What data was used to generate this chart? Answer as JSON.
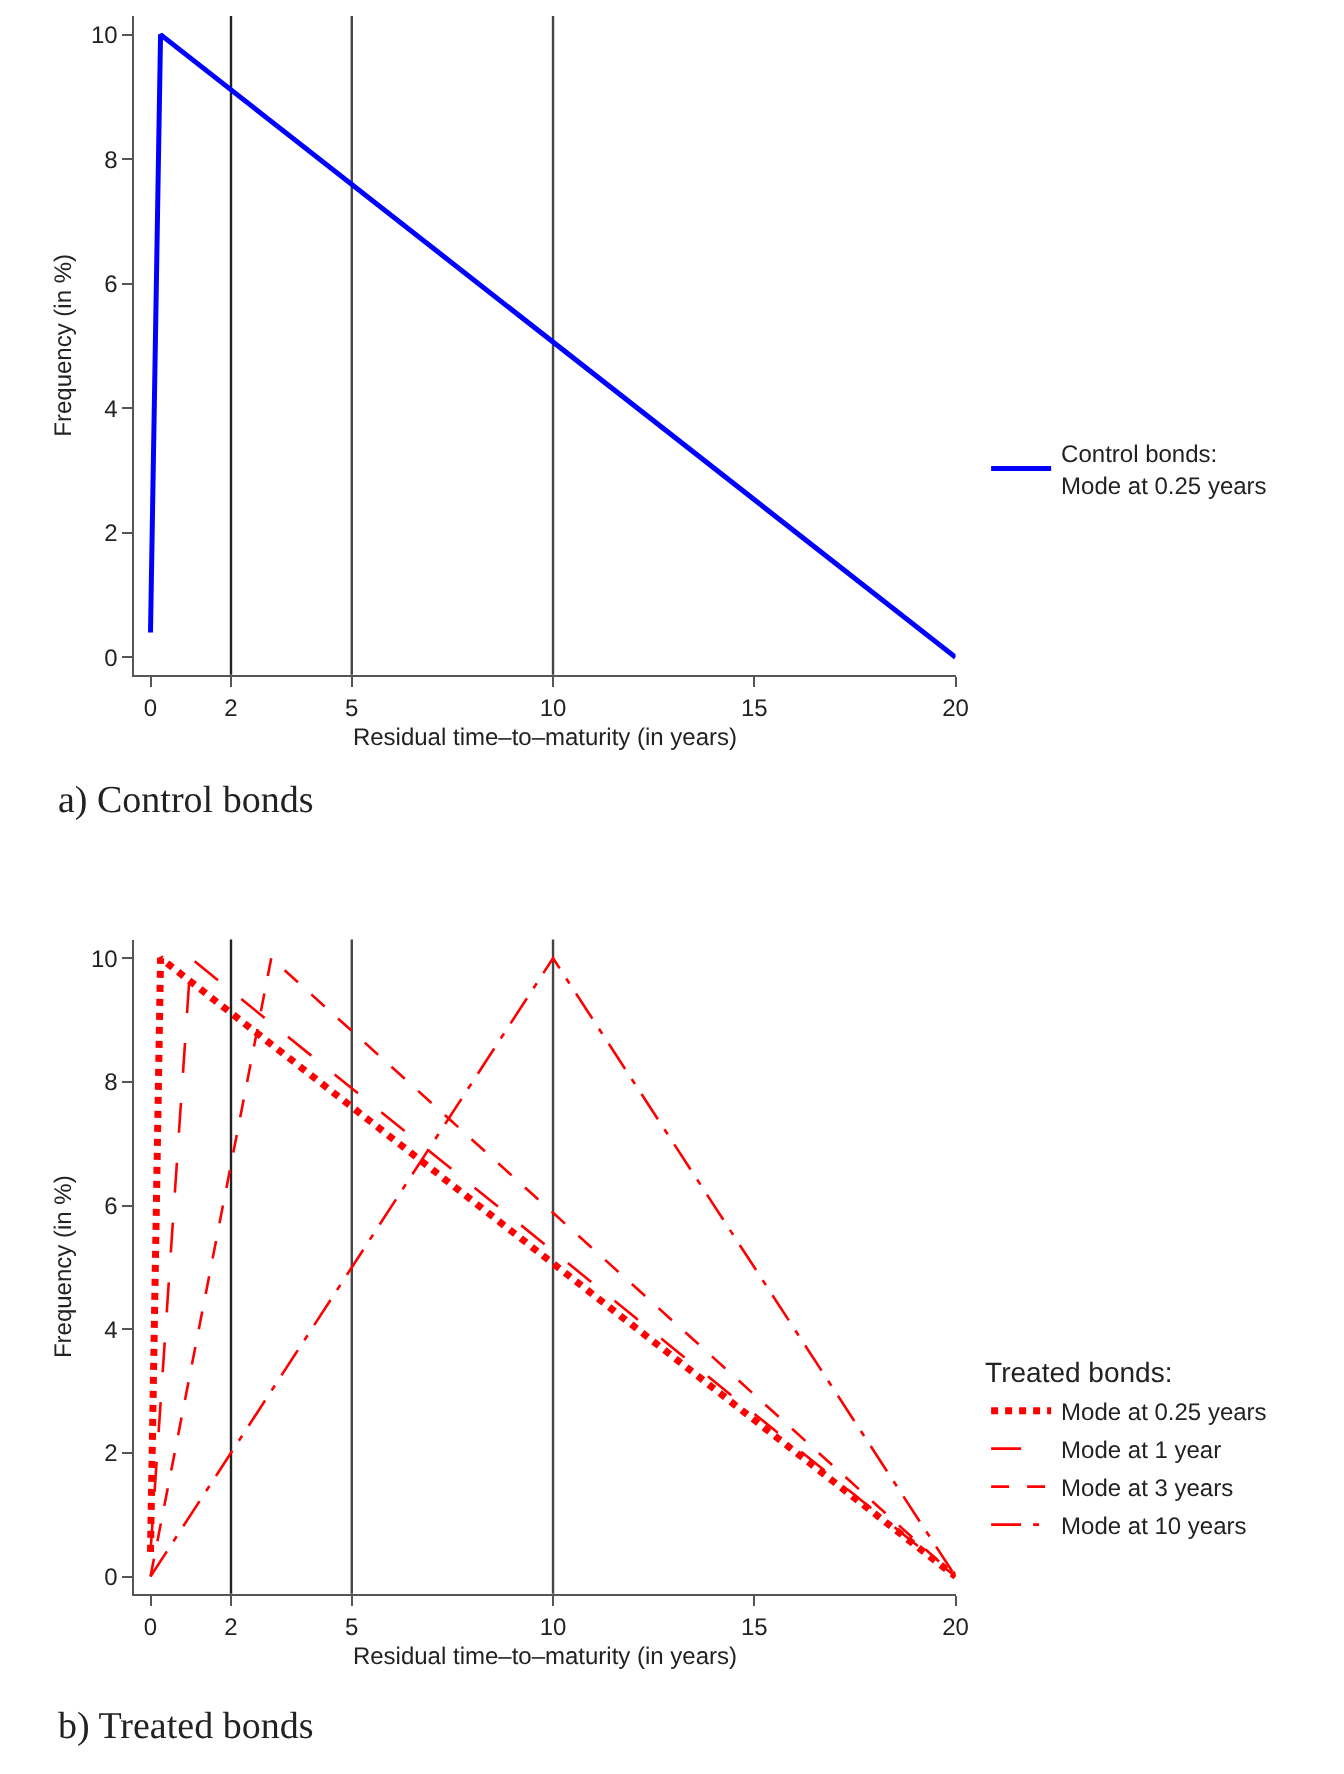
{
  "chart_data": [
    {
      "type": "line",
      "xlabel": "Residual time–to–maturity (in years)",
      "ylabel": "Frequency (in %)",
      "annotations": [
        "a) Control bonds"
      ],
      "series": [
        {
          "name": "Control bonds:\nMode at 0.25 years",
          "color": "#0000ff",
          "x": [
            0,
            0.25,
            20
          ],
          "values": [
            0.4,
            10,
            0
          ],
          "line_style": "solid"
        }
      ],
      "xlim": [
        -0.4,
        20
      ],
      "xticks": [
        0,
        2,
        5,
        10,
        15,
        20
      ],
      "ylim": [
        -0.28,
        10.3
      ],
      "yticks": [
        0,
        2,
        4,
        6,
        8,
        10
      ],
      "ref_lines": [
        {
          "axis": "x",
          "value": 2,
          "color": "#222222"
        },
        {
          "axis": "x",
          "value": 5,
          "color": "#444444"
        },
        {
          "axis": "x",
          "value": 10,
          "color": "#444444"
        }
      ],
      "grid": false,
      "legend": "right",
      "marker": "none"
    },
    {
      "type": "line",
      "xlabel": "Residual time–to–maturity (in years)",
      "ylabel": "Frequency (in %)",
      "legend_title": "Treated bonds:",
      "annotations": [
        "b) Treated bonds"
      ],
      "series": [
        {
          "name": "Mode at 0.25 years",
          "color": "#ff0000",
          "x": [
            0,
            0.25,
            20
          ],
          "values": [
            0.4,
            10,
            0
          ],
          "line_style": "dotted"
        },
        {
          "name": "Mode at 1 year",
          "color": "#ff0000",
          "x": [
            0,
            1,
            20
          ],
          "values": [
            0.4,
            10,
            0
          ],
          "line_style": "longdash"
        },
        {
          "name": "Mode at 3 years",
          "color": "#ff0000",
          "x": [
            0,
            3,
            20
          ],
          "values": [
            0,
            10,
            0
          ],
          "line_style": "dashed"
        },
        {
          "name": "Mode at 10 years",
          "color": "#ff0000",
          "x": [
            0,
            10,
            20
          ],
          "values": [
            0,
            10,
            0
          ],
          "line_style": "dashdot"
        }
      ],
      "xlim": [
        -0.4,
        20
      ],
      "xticks": [
        0,
        2,
        5,
        10,
        15,
        20
      ],
      "ylim": [
        -0.28,
        10.3
      ],
      "yticks": [
        0,
        2,
        4,
        6,
        8,
        10
      ],
      "ref_lines": [
        {
          "axis": "x",
          "value": 2,
          "color": "#222222"
        },
        {
          "axis": "x",
          "value": 5,
          "color": "#444444"
        },
        {
          "axis": "x",
          "value": 10,
          "color": "#444444"
        }
      ],
      "grid": false,
      "legend": "right",
      "marker": "none"
    }
  ]
}
